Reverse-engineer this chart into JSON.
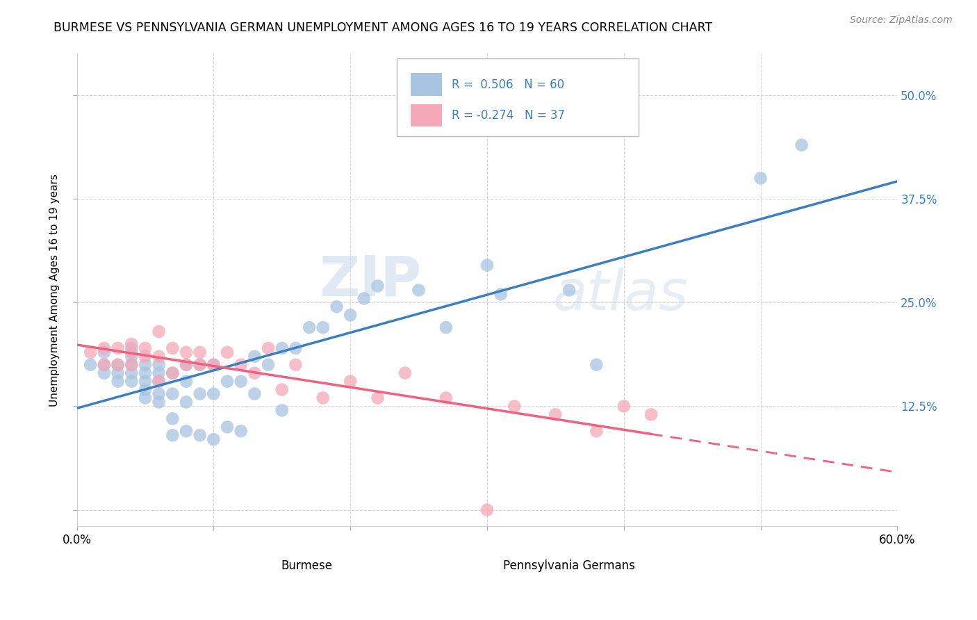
{
  "title": "BURMESE VS PENNSYLVANIA GERMAN UNEMPLOYMENT AMONG AGES 16 TO 19 YEARS CORRELATION CHART",
  "source": "Source: ZipAtlas.com",
  "ylabel": "Unemployment Among Ages 16 to 19 years",
  "xlabel_burmese": "Burmese",
  "xlabel_pa_german": "Pennsylvania Germans",
  "xlim": [
    0.0,
    0.6
  ],
  "ylim": [
    -0.02,
    0.55
  ],
  "xticks": [
    0.0,
    0.1,
    0.2,
    0.3,
    0.4,
    0.5,
    0.6
  ],
  "xticklabels": [
    "0.0%",
    "",
    "",
    "",
    "",
    "",
    "60.0%"
  ],
  "yticks": [
    0.0,
    0.125,
    0.25,
    0.375,
    0.5
  ],
  "yticklabels": [
    "",
    "12.5%",
    "25.0%",
    "37.5%",
    "50.0%"
  ],
  "R_burmese": 0.506,
  "N_burmese": 60,
  "R_pa": -0.274,
  "N_pa": 37,
  "burmese_color": "#a8c4e0",
  "pa_color": "#f4a8b8",
  "burmese_line_color": "#3a7fc1",
  "pa_line_color": "#f06080",
  "grid_color": "#cccccc",
  "background_color": "#ffffff",
  "burmese_x": [
    0.01,
    0.02,
    0.02,
    0.02,
    0.03,
    0.03,
    0.03,
    0.04,
    0.04,
    0.04,
    0.04,
    0.04,
    0.05,
    0.05,
    0.05,
    0.05,
    0.05,
    0.06,
    0.06,
    0.06,
    0.06,
    0.06,
    0.07,
    0.07,
    0.07,
    0.07,
    0.08,
    0.08,
    0.08,
    0.08,
    0.09,
    0.09,
    0.09,
    0.1,
    0.1,
    0.1,
    0.11,
    0.11,
    0.12,
    0.12,
    0.13,
    0.13,
    0.14,
    0.15,
    0.15,
    0.16,
    0.17,
    0.18,
    0.19,
    0.2,
    0.21,
    0.22,
    0.25,
    0.27,
    0.3,
    0.31,
    0.36,
    0.38,
    0.5,
    0.53
  ],
  "burmese_y": [
    0.175,
    0.165,
    0.175,
    0.19,
    0.155,
    0.165,
    0.175,
    0.155,
    0.165,
    0.175,
    0.185,
    0.195,
    0.135,
    0.145,
    0.155,
    0.165,
    0.175,
    0.13,
    0.14,
    0.155,
    0.165,
    0.175,
    0.09,
    0.11,
    0.14,
    0.165,
    0.095,
    0.13,
    0.155,
    0.175,
    0.09,
    0.14,
    0.175,
    0.085,
    0.14,
    0.175,
    0.1,
    0.155,
    0.095,
    0.155,
    0.14,
    0.185,
    0.175,
    0.12,
    0.195,
    0.195,
    0.22,
    0.22,
    0.245,
    0.235,
    0.255,
    0.27,
    0.265,
    0.22,
    0.295,
    0.26,
    0.265,
    0.175,
    0.4,
    0.44
  ],
  "pa_x": [
    0.01,
    0.02,
    0.02,
    0.03,
    0.03,
    0.04,
    0.04,
    0.04,
    0.05,
    0.05,
    0.06,
    0.06,
    0.06,
    0.07,
    0.07,
    0.08,
    0.08,
    0.09,
    0.09,
    0.1,
    0.11,
    0.12,
    0.13,
    0.14,
    0.15,
    0.16,
    0.18,
    0.2,
    0.22,
    0.24,
    0.27,
    0.32,
    0.35,
    0.38,
    0.4,
    0.42,
    0.3
  ],
  "pa_y": [
    0.19,
    0.175,
    0.195,
    0.175,
    0.195,
    0.19,
    0.2,
    0.175,
    0.185,
    0.195,
    0.155,
    0.185,
    0.215,
    0.165,
    0.195,
    0.175,
    0.19,
    0.19,
    0.175,
    0.175,
    0.19,
    0.175,
    0.165,
    0.195,
    0.145,
    0.175,
    0.135,
    0.155,
    0.135,
    0.165,
    0.135,
    0.125,
    0.115,
    0.095,
    0.125,
    0.115,
    0.0
  ],
  "watermark_zip": "ZIP",
  "watermark_atlas": "atlas"
}
